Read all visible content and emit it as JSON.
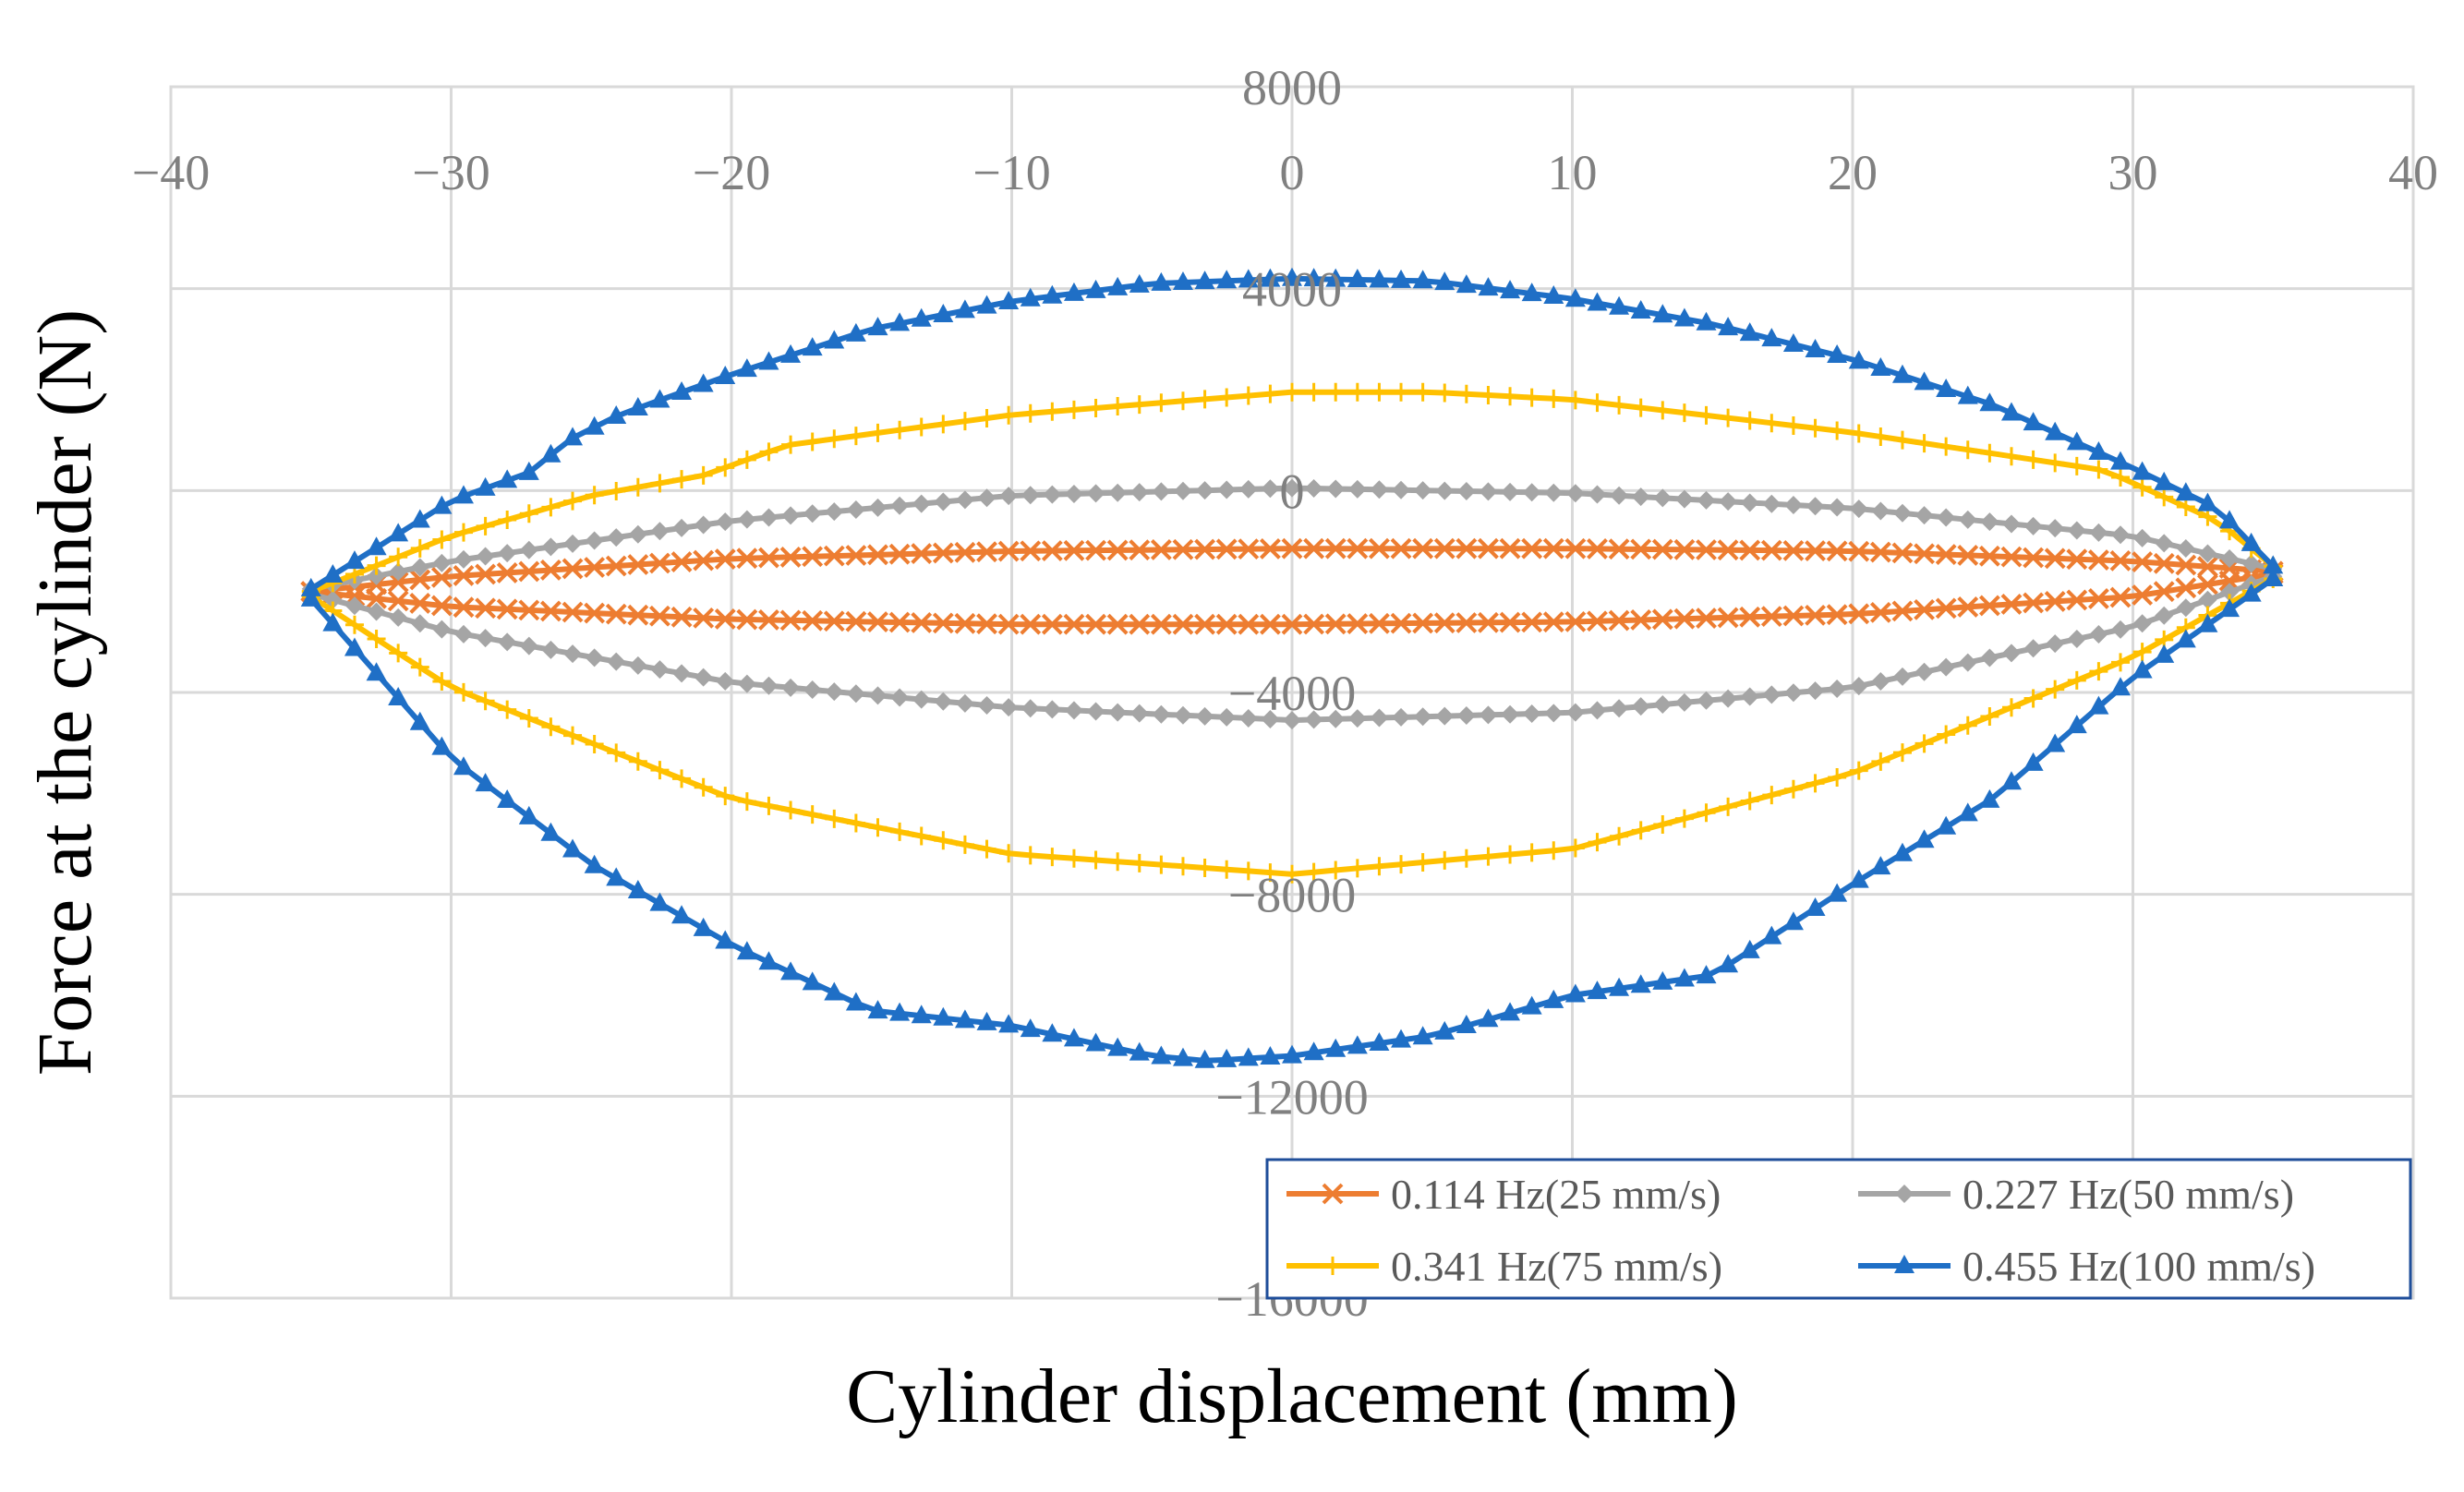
{
  "chart_data": {
    "type": "scatter",
    "title": "",
    "xlabel": "Cylinder displacement (mm)",
    "ylabel": "Force at the cylinder (N)",
    "xlim": [
      -40,
      40
    ],
    "ylim": [
      -16000,
      8000
    ],
    "x_ticks": [
      -40,
      -30,
      -20,
      -10,
      0,
      10,
      20,
      30,
      40
    ],
    "y_ticks": [
      8000,
      4000,
      0,
      -4000,
      -8000,
      -12000,
      -16000
    ],
    "x_tick_labels": [
      "−40",
      "−30",
      "−20",
      "−10",
      "0",
      "10",
      "20",
      "30",
      "40"
    ],
    "y_tick_labels": [
      "8000",
      "4000",
      "0",
      "−4000",
      "−8000",
      "−12000",
      "−16000"
    ],
    "grid": true,
    "legend_position": "bottom-right",
    "series": [
      {
        "name": "0.114 Hz(25 mm/s)",
        "color": "#ED7D31",
        "marker": "x",
        "upper": {
          "x": [
            -35,
            -30,
            -20,
            -10,
            0,
            10,
            20,
            30,
            35
          ],
          "y": [
            -2000,
            -1700,
            -1350,
            -1200,
            -1150,
            -1150,
            -1200,
            -1400,
            -1600
          ]
        },
        "lower": {
          "x": [
            -35,
            -30,
            -20,
            -10,
            0,
            10,
            20,
            30,
            35
          ],
          "y": [
            -2000,
            -2300,
            -2550,
            -2650,
            -2650,
            -2600,
            -2450,
            -2100,
            -1650
          ]
        }
      },
      {
        "name": "0.227 Hz(50 mm/s)",
        "color": "#A5A5A5",
        "marker": "diamond",
        "upper": {
          "x": [
            -35,
            -30,
            -20,
            -10,
            0,
            10,
            20,
            30,
            35
          ],
          "y": [
            -1950,
            -1400,
            -600,
            -100,
            50,
            -50,
            -350,
            -900,
            -1550
          ]
        },
        "lower": {
          "x": [
            -35,
            -30,
            -20,
            -10,
            0,
            10,
            20,
            30,
            35
          ],
          "y": [
            -2050,
            -2800,
            -3800,
            -4300,
            -4550,
            -4400,
            -3900,
            -2700,
            -1700
          ]
        }
      },
      {
        "name": "0.341 Hz(75 mm/s)",
        "color": "#FFC000",
        "marker": "plus",
        "upper": {
          "x": [
            -35,
            -30,
            -25,
            -21,
            -18,
            -10,
            0,
            5,
            10,
            20,
            29,
            30,
            33,
            35
          ],
          "y": [
            -2000,
            -900,
            -100,
            300,
            900,
            1500,
            1950,
            1950,
            1800,
            1150,
            400,
            150,
            -600,
            -1500
          ]
        },
        "lower": {
          "x": [
            -35,
            -30,
            -20,
            -10,
            0,
            10,
            20,
            30,
            35
          ],
          "y": [
            -2100,
            -3900,
            -6100,
            -7200,
            -7600,
            -7100,
            -5600,
            -3300,
            -1750
          ]
        }
      },
      {
        "name": "0.455 Hz(100 mm/s)",
        "color": "#1F6FC6",
        "marker": "triangle",
        "upper": {
          "x": [
            -35,
            -30,
            -27,
            -26,
            -24,
            -20,
            -15,
            -10,
            -5,
            0,
            5,
            10,
            15,
            20,
            25,
            30,
            33,
            35
          ],
          "y": [
            -1950,
            -200,
            400,
            950,
            1500,
            2300,
            3200,
            3750,
            4100,
            4200,
            4150,
            3800,
            3300,
            2600,
            1700,
            450,
            -350,
            -1500
          ]
        },
        "lower": {
          "x": [
            -35,
            -30,
            -25,
            -20,
            -15,
            -10,
            -5,
            -3,
            0,
            5,
            10,
            15,
            20,
            25,
            30,
            35
          ],
          "y": [
            -2150,
            -5300,
            -7400,
            -9000,
            -10300,
            -10600,
            -11200,
            -11300,
            -11200,
            -10800,
            -10000,
            -9600,
            -7800,
            -6100,
            -3700,
            -1750
          ]
        }
      }
    ]
  }
}
